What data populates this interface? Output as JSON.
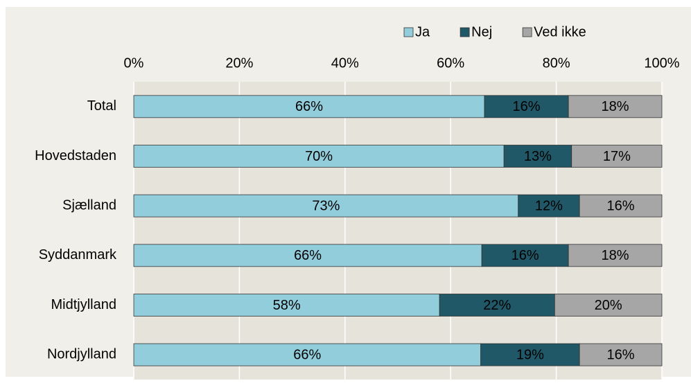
{
  "chart_data": {
    "type": "stacked-barh",
    "categories": [
      "Total",
      "Hovedstaden",
      "Sjælland",
      "Syddanmark",
      "Midtjylland",
      "Nordjylland"
    ],
    "series": [
      {
        "name": "Ja",
        "color": "#92cddc",
        "values": [
          66.4,
          70.1,
          72.8,
          65.9,
          57.9,
          65.7
        ],
        "value_labels": [
          "66%",
          "70%",
          "73%",
          "66%",
          "58%",
          "66%"
        ]
      },
      {
        "name": "Nej",
        "color": "#215868",
        "values": [
          15.9,
          12.8,
          11.6,
          16.4,
          21.8,
          18.7
        ],
        "value_labels": [
          "16%",
          "13%",
          "12%",
          "16%",
          "22%",
          "19%"
        ]
      },
      {
        "name": "Ved ikke",
        "color": "#a6a6a6",
        "values": [
          17.7,
          17.1,
          15.6,
          17.7,
          20.3,
          15.6
        ],
        "value_labels": [
          "18%",
          "17%",
          "16%",
          "18%",
          "20%",
          "16%"
        ]
      }
    ],
    "xlim": [
      0,
      100
    ],
    "xticks": [
      {
        "value": 0,
        "label": "0%"
      },
      {
        "value": 20,
        "label": "20%"
      },
      {
        "value": 40,
        "label": "40%"
      },
      {
        "value": 60,
        "label": "60%"
      },
      {
        "value": 80,
        "label": "80%"
      },
      {
        "value": 100,
        "label": "100%"
      }
    ],
    "grid": true,
    "legend": "top"
  }
}
